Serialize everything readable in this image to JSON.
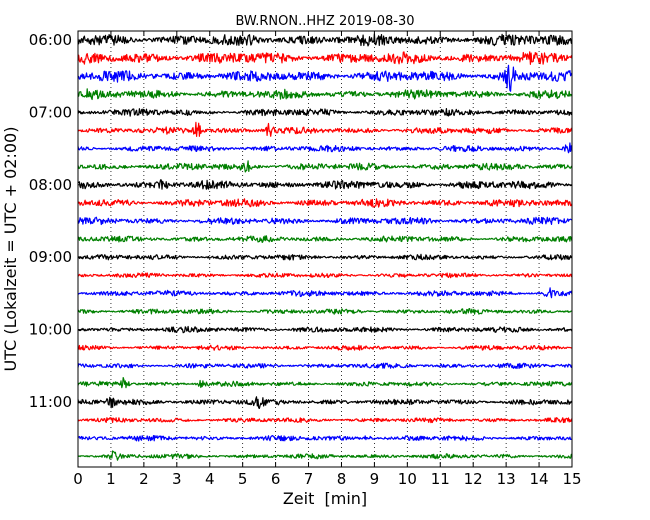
{
  "chart_data": {
    "type": "line",
    "title": "BW.RNON..HHZ 2019-08-30",
    "xlabel": "Zeit  [min]",
    "ylabel": "UTC (Lokalzeit = UTC + 02:00)",
    "xlim": [
      0,
      15
    ],
    "x_ticks": [
      "0",
      "1",
      "2",
      "3",
      "4",
      "5",
      "6",
      "7",
      "8",
      "9",
      "10",
      "11",
      "12",
      "13",
      "14",
      "15"
    ],
    "y_tick_labels": [
      "06:00",
      "07:00",
      "08:00",
      "09:00",
      "10:00",
      "11:00"
    ],
    "grid": "vertical dotted",
    "trace_colors": [
      "#000000",
      "#ff0000",
      "#0000ff",
      "#008000"
    ],
    "traces": [
      {
        "start": "06:00",
        "level": 0.9,
        "bursts": []
      },
      {
        "start": "06:15",
        "level": 0.9,
        "bursts": []
      },
      {
        "start": "06:30",
        "level": 0.85,
        "bursts": [
          {
            "x": 13.1,
            "amp": 2.2
          }
        ]
      },
      {
        "start": "06:45",
        "level": 0.6,
        "bursts": [
          {
            "x": 0.4,
            "amp": 1.0
          }
        ]
      },
      {
        "start": "07:00",
        "level": 0.45,
        "bursts": []
      },
      {
        "start": "07:15",
        "level": 0.35,
        "bursts": [
          {
            "x": 3.6,
            "amp": 1.3
          },
          {
            "x": 5.8,
            "amp": 1.1
          }
        ]
      },
      {
        "start": "07:30",
        "level": 0.3,
        "bursts": [
          {
            "x": 14.9,
            "amp": 0.9
          }
        ]
      },
      {
        "start": "07:45",
        "level": 0.4,
        "bursts": [
          {
            "x": 5.1,
            "amp": 0.9
          }
        ]
      },
      {
        "start": "08:00",
        "level": 0.55,
        "bursts": [
          {
            "x": 2.6,
            "amp": 0.9
          }
        ]
      },
      {
        "start": "08:15",
        "level": 0.5,
        "bursts": []
      },
      {
        "start": "08:30",
        "level": 0.4,
        "bursts": []
      },
      {
        "start": "08:45",
        "level": 0.3,
        "bursts": []
      },
      {
        "start": "09:00",
        "level": 0.2,
        "bursts": []
      },
      {
        "start": "09:15",
        "level": 0.15,
        "bursts": []
      },
      {
        "start": "09:30",
        "level": 0.25,
        "bursts": [
          {
            "x": 14.3,
            "amp": 0.8
          }
        ]
      },
      {
        "start": "09:45",
        "level": 0.2,
        "bursts": []
      },
      {
        "start": "10:00",
        "level": 0.25,
        "bursts": []
      },
      {
        "start": "10:15",
        "level": 0.15,
        "bursts": []
      },
      {
        "start": "10:30",
        "level": 0.18,
        "bursts": []
      },
      {
        "start": "10:45",
        "level": 0.15,
        "bursts": [
          {
            "x": 1.4,
            "amp": 1.0
          },
          {
            "x": 3.8,
            "amp": 0.9
          }
        ]
      },
      {
        "start": "11:00",
        "level": 0.3,
        "bursts": [
          {
            "x": 1.0,
            "amp": 0.7
          },
          {
            "x": 5.5,
            "amp": 0.6
          }
        ]
      },
      {
        "start": "11:15",
        "level": 0.15,
        "bursts": []
      },
      {
        "start": "11:30",
        "level": 0.2,
        "bursts": [
          {
            "x": 8.8,
            "amp": 0.6
          }
        ]
      },
      {
        "start": "11:45",
        "level": 0.15,
        "bursts": [
          {
            "x": 1.1,
            "amp": 0.7
          }
        ]
      }
    ]
  }
}
